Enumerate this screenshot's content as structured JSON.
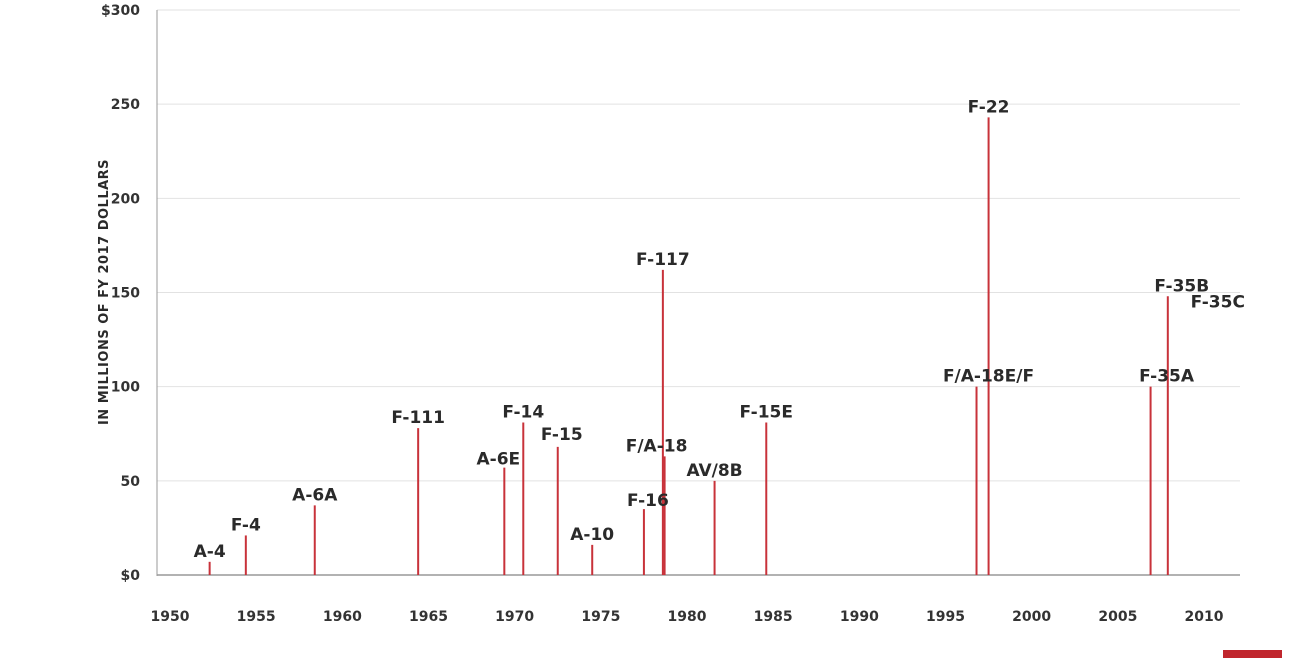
{
  "chart_data": {
    "type": "bar",
    "subtype": "lollipop-stem",
    "title": "",
    "xlabel": "",
    "ylabel": "IN MILLIONS OF FY 2017 DOLLARS",
    "xlim": [
      1950,
      2010
    ],
    "ylim": [
      0,
      300
    ],
    "grid": true,
    "x_ticks": [
      "1950",
      "1955",
      "1960",
      "1965",
      "1970",
      "1975",
      "1980",
      "1985",
      "1990",
      "1995",
      "2000",
      "2005",
      "2010"
    ],
    "y_ticks": [
      "$0",
      "50",
      "100",
      "150",
      "200",
      "250",
      "$300"
    ],
    "y_tick_values": [
      0,
      50,
      100,
      150,
      200,
      250,
      300
    ],
    "series_color": "#c8323a",
    "points": [
      {
        "name": "A-4",
        "x": 1952.3,
        "y": 7
      },
      {
        "name": "F-4",
        "x": 1954.4,
        "y": 21
      },
      {
        "name": "A-6A",
        "x": 1958.4,
        "y": 37
      },
      {
        "name": "F-111",
        "x": 1964.4,
        "y": 78
      },
      {
        "name": "A-6E",
        "x": 1969.4,
        "y": 57
      },
      {
        "name": "F-14",
        "x": 1970.5,
        "y": 81
      },
      {
        "name": "F-15",
        "x": 1972.5,
        "y": 68
      },
      {
        "name": "A-10",
        "x": 1974.5,
        "y": 16
      },
      {
        "name": "F-16",
        "x": 1977.5,
        "y": 35
      },
      {
        "name": "F-117",
        "x": 1978.6,
        "y": 162
      },
      {
        "name": "F/A-18",
        "x": 1978.7,
        "y": 63
      },
      {
        "name": "AV/8B",
        "x": 1981.6,
        "y": 50
      },
      {
        "name": "F-15E",
        "x": 1984.6,
        "y": 81
      },
      {
        "name": "F/A-18E/F",
        "x": 1996.8,
        "y": 100
      },
      {
        "name": "F-22",
        "x": 1997.5,
        "y": 243
      },
      {
        "name": "F-35A",
        "x": 2006.9,
        "y": 100
      },
      {
        "name": "F-35B",
        "x": 2007.9,
        "y": 148
      },
      {
        "name": "F-35C",
        "x": 2007.9,
        "y": 125
      }
    ]
  }
}
